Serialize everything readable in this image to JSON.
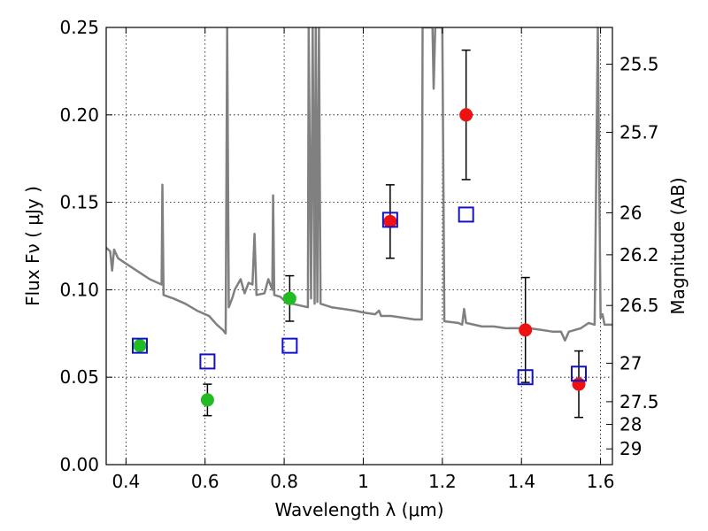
{
  "chart_data": {
    "type": "scatter",
    "title": "",
    "xlabel": "Wavelength  λ (μm)",
    "ylabel": "Flux  Fν  ( μJy )",
    "ylabel_right": "Magnitude (AB)",
    "xlim": [
      0.35,
      1.63
    ],
    "ylim": [
      0.0,
      0.25
    ],
    "grid": true,
    "x_ticks": [
      0.4,
      0.6,
      0.8,
      1.0,
      1.2,
      1.4,
      1.6
    ],
    "x_tick_labels": [
      "0.4",
      "0.6",
      "0.8",
      "1",
      "1.2",
      "1.4",
      "1.6"
    ],
    "y_ticks": [
      0.0,
      0.05,
      0.1,
      0.15,
      0.2,
      0.25
    ],
    "y_tick_labels": [
      "0.00",
      "0.05",
      "0.10",
      "0.15",
      "0.20",
      "0.25"
    ],
    "right_ticks": [
      {
        "label": "25.5",
        "flux": 0.229
      },
      {
        "label": "25.7",
        "flux": 0.19
      },
      {
        "label": "26",
        "flux": 0.144
      },
      {
        "label": "26.2",
        "flux": 0.12
      },
      {
        "label": "26.5",
        "flux": 0.091
      },
      {
        "label": "27",
        "flux": 0.058
      },
      {
        "label": "27.5",
        "flux": 0.036
      },
      {
        "label": "28",
        "flux": 0.023
      },
      {
        "label": "29",
        "flux": 0.009
      }
    ],
    "series": [
      {
        "marker": "circle",
        "color": "#22bb22",
        "points": [
          {
            "x": 0.435,
            "y": 0.068,
            "err": 0
          },
          {
            "x": 0.606,
            "y": 0.037,
            "err": 0.009
          },
          {
            "x": 0.814,
            "y": 0.095,
            "err": 0.013
          }
        ]
      },
      {
        "marker": "circle",
        "color": "#ee1111",
        "points": [
          {
            "x": 1.068,
            "y": 0.139,
            "err": 0.021
          },
          {
            "x": 1.26,
            "y": 0.2,
            "err": 0.037
          },
          {
            "x": 1.41,
            "y": 0.077,
            "err": 0.03
          },
          {
            "x": 1.545,
            "y": 0.046,
            "err": 0.019
          }
        ]
      },
      {
        "marker": "open-square",
        "color": "#1111cc",
        "points": [
          {
            "x": 0.435,
            "y": 0.068
          },
          {
            "x": 0.606,
            "y": 0.059
          },
          {
            "x": 0.814,
            "y": 0.068
          },
          {
            "x": 1.068,
            "y": 0.14
          },
          {
            "x": 1.26,
            "y": 0.143
          },
          {
            "x": 1.41,
            "y": 0.05
          },
          {
            "x": 1.545,
            "y": 0.052
          }
        ]
      }
    ],
    "model_spectrum": {
      "color": "#808080",
      "points": [
        [
          0.35,
          0.124
        ],
        [
          0.36,
          0.122
        ],
        [
          0.365,
          0.111
        ],
        [
          0.37,
          0.123
        ],
        [
          0.38,
          0.118
        ],
        [
          0.4,
          0.115
        ],
        [
          0.42,
          0.112
        ],
        [
          0.44,
          0.109
        ],
        [
          0.46,
          0.106
        ],
        [
          0.48,
          0.104
        ],
        [
          0.49,
          0.103
        ],
        [
          0.492,
          0.16
        ],
        [
          0.495,
          0.097
        ],
        [
          0.52,
          0.095
        ],
        [
          0.55,
          0.092
        ],
        [
          0.58,
          0.088
        ],
        [
          0.61,
          0.085
        ],
        [
          0.63,
          0.08
        ],
        [
          0.645,
          0.077
        ],
        [
          0.652,
          0.075
        ],
        [
          0.656,
          0.25
        ],
        [
          0.66,
          0.09
        ],
        [
          0.67,
          0.096
        ],
        [
          0.675,
          0.1
        ],
        [
          0.69,
          0.106
        ],
        [
          0.7,
          0.098
        ],
        [
          0.71,
          0.104
        ],
        [
          0.72,
          0.103
        ],
        [
          0.725,
          0.132
        ],
        [
          0.73,
          0.097
        ],
        [
          0.75,
          0.098
        ],
        [
          0.76,
          0.106
        ],
        [
          0.77,
          0.1
        ],
        [
          0.772,
          0.154
        ],
        [
          0.775,
          0.097
        ],
        [
          0.79,
          0.096
        ],
        [
          0.8,
          0.094
        ],
        [
          0.82,
          0.092
        ],
        [
          0.84,
          0.091
        ],
        [
          0.86,
          0.09
        ],
        [
          0.862,
          0.25
        ],
        [
          0.868,
          0.095
        ],
        [
          0.872,
          0.25
        ],
        [
          0.877,
          0.092
        ],
        [
          0.88,
          0.25
        ],
        [
          0.884,
          0.093
        ],
        [
          0.888,
          0.25
        ],
        [
          0.892,
          0.092
        ],
        [
          0.92,
          0.09
        ],
        [
          0.95,
          0.089
        ],
        [
          0.98,
          0.088
        ],
        [
          1.0,
          0.087
        ],
        [
          1.03,
          0.086
        ],
        [
          1.04,
          0.088
        ],
        [
          1.045,
          0.085
        ],
        [
          1.07,
          0.085
        ],
        [
          1.1,
          0.084
        ],
        [
          1.13,
          0.083
        ],
        [
          1.148,
          0.083
        ],
        [
          1.15,
          0.25
        ],
        [
          1.175,
          0.25
        ],
        [
          1.178,
          0.215
        ],
        [
          1.182,
          0.25
        ],
        [
          1.2,
          0.25
        ],
        [
          1.205,
          0.082
        ],
        [
          1.24,
          0.081
        ],
        [
          1.25,
          0.08
        ],
        [
          1.255,
          0.089
        ],
        [
          1.26,
          0.081
        ],
        [
          1.28,
          0.08
        ],
        [
          1.3,
          0.079
        ],
        [
          1.33,
          0.079
        ],
        [
          1.36,
          0.078
        ],
        [
          1.39,
          0.078
        ],
        [
          1.42,
          0.078
        ],
        [
          1.45,
          0.077
        ],
        [
          1.48,
          0.076
        ],
        [
          1.5,
          0.076
        ],
        [
          1.51,
          0.071
        ],
        [
          1.52,
          0.076
        ],
        [
          1.55,
          0.078
        ],
        [
          1.57,
          0.081
        ],
        [
          1.585,
          0.08
        ],
        [
          1.593,
          0.25
        ],
        [
          1.6,
          0.084
        ],
        [
          1.605,
          0.086
        ],
        [
          1.61,
          0.08
        ],
        [
          1.63,
          0.08
        ]
      ]
    }
  }
}
